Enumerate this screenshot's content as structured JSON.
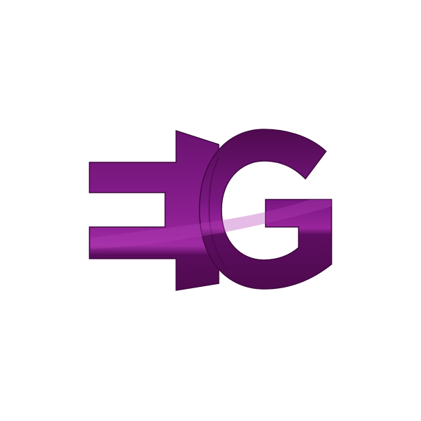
{
  "logo": {
    "letters": "EG",
    "colors": {
      "background": "#ffffff",
      "primary_dark": "#4f0a4f",
      "primary_mid": "#6a1270",
      "highlight": "#9a259c",
      "shine": "#b43fb6"
    }
  }
}
